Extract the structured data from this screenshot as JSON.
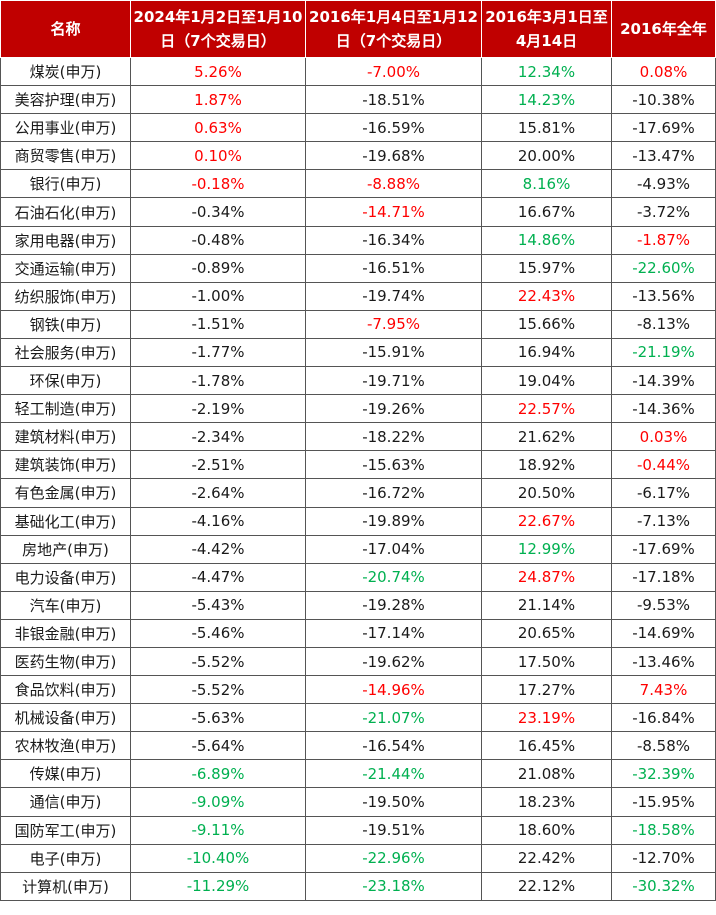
{
  "colors": {
    "header_bg": "#c00000",
    "header_text": "#ffffff",
    "up": "#ff0000",
    "down": "#00b050",
    "neutral": "#1a1a1a"
  },
  "headers": [
    "名称",
    "2024年1月2日至1月10日（7个交易日）",
    "2016年1月4日至1月12日（7个交易日）",
    "2016年3月1日至4月14日",
    "2016年全年"
  ],
  "rows": [
    {
      "name": "煤炭(申万)",
      "cells": [
        {
          "v": "5.26%",
          "c": "up"
        },
        {
          "v": "-7.00%",
          "c": "up"
        },
        {
          "v": "12.34%",
          "c": "down"
        },
        {
          "v": "0.08%",
          "c": "up"
        }
      ]
    },
    {
      "name": "美容护理(申万)",
      "cells": [
        {
          "v": "1.87%",
          "c": "up"
        },
        {
          "v": "-18.51%",
          "c": ""
        },
        {
          "v": "14.23%",
          "c": "down"
        },
        {
          "v": "-10.38%",
          "c": ""
        }
      ]
    },
    {
      "name": "公用事业(申万)",
      "cells": [
        {
          "v": "0.63%",
          "c": "up"
        },
        {
          "v": "-16.59%",
          "c": ""
        },
        {
          "v": "15.81%",
          "c": ""
        },
        {
          "v": "-17.69%",
          "c": ""
        }
      ]
    },
    {
      "name": "商贸零售(申万)",
      "cells": [
        {
          "v": "0.10%",
          "c": "up"
        },
        {
          "v": "-19.68%",
          "c": ""
        },
        {
          "v": "20.00%",
          "c": ""
        },
        {
          "v": "-13.47%",
          "c": ""
        }
      ]
    },
    {
      "name": "银行(申万)",
      "cells": [
        {
          "v": "-0.18%",
          "c": "up"
        },
        {
          "v": "-8.88%",
          "c": "up"
        },
        {
          "v": "8.16%",
          "c": "down"
        },
        {
          "v": "-4.93%",
          "c": ""
        }
      ]
    },
    {
      "name": "石油石化(申万)",
      "cells": [
        {
          "v": "-0.34%",
          "c": ""
        },
        {
          "v": "-14.71%",
          "c": "up"
        },
        {
          "v": "16.67%",
          "c": ""
        },
        {
          "v": "-3.72%",
          "c": ""
        }
      ]
    },
    {
      "name": "家用电器(申万)",
      "cells": [
        {
          "v": "-0.48%",
          "c": ""
        },
        {
          "v": "-16.34%",
          "c": ""
        },
        {
          "v": "14.86%",
          "c": "down"
        },
        {
          "v": "-1.87%",
          "c": "up"
        }
      ]
    },
    {
      "name": "交通运输(申万)",
      "cells": [
        {
          "v": "-0.89%",
          "c": ""
        },
        {
          "v": "-16.51%",
          "c": ""
        },
        {
          "v": "15.97%",
          "c": ""
        },
        {
          "v": "-22.60%",
          "c": "down"
        }
      ]
    },
    {
      "name": "纺织服饰(申万)",
      "cells": [
        {
          "v": "-1.00%",
          "c": ""
        },
        {
          "v": "-19.74%",
          "c": ""
        },
        {
          "v": "22.43%",
          "c": "up"
        },
        {
          "v": "-13.56%",
          "c": ""
        }
      ]
    },
    {
      "name": "钢铁(申万)",
      "cells": [
        {
          "v": "-1.51%",
          "c": ""
        },
        {
          "v": "-7.95%",
          "c": "up"
        },
        {
          "v": "15.66%",
          "c": ""
        },
        {
          "v": "-8.13%",
          "c": ""
        }
      ]
    },
    {
      "name": "社会服务(申万)",
      "cells": [
        {
          "v": "-1.77%",
          "c": ""
        },
        {
          "v": "-15.91%",
          "c": ""
        },
        {
          "v": "16.94%",
          "c": ""
        },
        {
          "v": "-21.19%",
          "c": "down"
        }
      ]
    },
    {
      "name": "环保(申万)",
      "cells": [
        {
          "v": "-1.78%",
          "c": ""
        },
        {
          "v": "-19.71%",
          "c": ""
        },
        {
          "v": "19.04%",
          "c": ""
        },
        {
          "v": "-14.39%",
          "c": ""
        }
      ]
    },
    {
      "name": "轻工制造(申万)",
      "cells": [
        {
          "v": "-2.19%",
          "c": ""
        },
        {
          "v": "-19.26%",
          "c": ""
        },
        {
          "v": "22.57%",
          "c": "up"
        },
        {
          "v": "-14.36%",
          "c": ""
        }
      ]
    },
    {
      "name": "建筑材料(申万)",
      "cells": [
        {
          "v": "-2.34%",
          "c": ""
        },
        {
          "v": "-18.22%",
          "c": ""
        },
        {
          "v": "21.62%",
          "c": ""
        },
        {
          "v": "0.03%",
          "c": "up"
        }
      ]
    },
    {
      "name": "建筑装饰(申万)",
      "cells": [
        {
          "v": "-2.51%",
          "c": ""
        },
        {
          "v": "-15.63%",
          "c": ""
        },
        {
          "v": "18.92%",
          "c": ""
        },
        {
          "v": "-0.44%",
          "c": "up"
        }
      ]
    },
    {
      "name": "有色金属(申万)",
      "cells": [
        {
          "v": "-2.64%",
          "c": ""
        },
        {
          "v": "-16.72%",
          "c": ""
        },
        {
          "v": "20.50%",
          "c": ""
        },
        {
          "v": "-6.17%",
          "c": ""
        }
      ]
    },
    {
      "name": "基础化工(申万)",
      "cells": [
        {
          "v": "-4.16%",
          "c": ""
        },
        {
          "v": "-19.89%",
          "c": ""
        },
        {
          "v": "22.67%",
          "c": "up"
        },
        {
          "v": "-7.13%",
          "c": ""
        }
      ]
    },
    {
      "name": "房地产(申万)",
      "cells": [
        {
          "v": "-4.42%",
          "c": ""
        },
        {
          "v": "-17.04%",
          "c": ""
        },
        {
          "v": "12.99%",
          "c": "down"
        },
        {
          "v": "-17.69%",
          "c": ""
        }
      ]
    },
    {
      "name": "电力设备(申万)",
      "cells": [
        {
          "v": "-4.47%",
          "c": ""
        },
        {
          "v": "-20.74%",
          "c": "down"
        },
        {
          "v": "24.87%",
          "c": "up"
        },
        {
          "v": "-17.18%",
          "c": ""
        }
      ]
    },
    {
      "name": "汽车(申万)",
      "cells": [
        {
          "v": "-5.43%",
          "c": ""
        },
        {
          "v": "-19.28%",
          "c": ""
        },
        {
          "v": "21.14%",
          "c": ""
        },
        {
          "v": "-9.53%",
          "c": ""
        }
      ]
    },
    {
      "name": "非银金融(申万)",
      "cells": [
        {
          "v": "-5.46%",
          "c": ""
        },
        {
          "v": "-17.14%",
          "c": ""
        },
        {
          "v": "20.65%",
          "c": ""
        },
        {
          "v": "-14.69%",
          "c": ""
        }
      ]
    },
    {
      "name": "医药生物(申万)",
      "cells": [
        {
          "v": "-5.52%",
          "c": ""
        },
        {
          "v": "-19.62%",
          "c": ""
        },
        {
          "v": "17.50%",
          "c": ""
        },
        {
          "v": "-13.46%",
          "c": ""
        }
      ]
    },
    {
      "name": "食品饮料(申万)",
      "cells": [
        {
          "v": "-5.52%",
          "c": ""
        },
        {
          "v": "-14.96%",
          "c": "up"
        },
        {
          "v": "17.27%",
          "c": ""
        },
        {
          "v": "7.43%",
          "c": "up"
        }
      ]
    },
    {
      "name": "机械设备(申万)",
      "cells": [
        {
          "v": "-5.63%",
          "c": ""
        },
        {
          "v": "-21.07%",
          "c": "down"
        },
        {
          "v": "23.19%",
          "c": "up"
        },
        {
          "v": "-16.84%",
          "c": ""
        }
      ]
    },
    {
      "name": "农林牧渔(申万)",
      "cells": [
        {
          "v": "-5.64%",
          "c": ""
        },
        {
          "v": "-16.54%",
          "c": ""
        },
        {
          "v": "16.45%",
          "c": ""
        },
        {
          "v": "-8.58%",
          "c": ""
        }
      ]
    },
    {
      "name": "传媒(申万)",
      "cells": [
        {
          "v": "-6.89%",
          "c": "down"
        },
        {
          "v": "-21.44%",
          "c": "down"
        },
        {
          "v": "21.08%",
          "c": ""
        },
        {
          "v": "-32.39%",
          "c": "down"
        }
      ]
    },
    {
      "name": "通信(申万)",
      "cells": [
        {
          "v": "-9.09%",
          "c": "down"
        },
        {
          "v": "-19.50%",
          "c": ""
        },
        {
          "v": "18.23%",
          "c": ""
        },
        {
          "v": "-15.95%",
          "c": ""
        }
      ]
    },
    {
      "name": "国防军工(申万)",
      "cells": [
        {
          "v": "-9.11%",
          "c": "down"
        },
        {
          "v": "-19.51%",
          "c": ""
        },
        {
          "v": "18.60%",
          "c": ""
        },
        {
          "v": "-18.58%",
          "c": "down"
        }
      ]
    },
    {
      "name": "电子(申万)",
      "cells": [
        {
          "v": "-10.40%",
          "c": "down"
        },
        {
          "v": "-22.96%",
          "c": "down"
        },
        {
          "v": "22.42%",
          "c": ""
        },
        {
          "v": "-12.70%",
          "c": ""
        }
      ]
    },
    {
      "name": "计算机(申万)",
      "cells": [
        {
          "v": "-11.29%",
          "c": "down"
        },
        {
          "v": "-23.18%",
          "c": "down"
        },
        {
          "v": "22.12%",
          "c": ""
        },
        {
          "v": "-30.32%",
          "c": "down"
        }
      ]
    }
  ]
}
